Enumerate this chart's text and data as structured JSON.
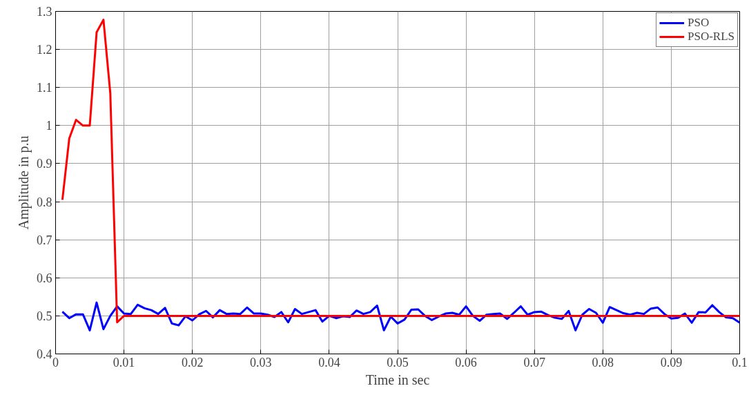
{
  "chart_data": {
    "type": "line",
    "xlabel": "Time in sec",
    "ylabel": "Amplitude in p.u",
    "xlim": [
      0,
      0.1
    ],
    "ylim": [
      0.4,
      1.3
    ],
    "xticks": [
      0,
      0.01,
      0.02,
      0.03,
      0.04,
      0.05,
      0.06,
      0.07,
      0.08,
      0.09,
      0.1
    ],
    "yticks": [
      0.4,
      0.5,
      0.6,
      0.7,
      0.8,
      0.9,
      1,
      1.1,
      1.2,
      1.3
    ],
    "grid": true,
    "legend": "top right",
    "line_style": "solid",
    "marker": "none",
    "series": [
      {
        "name": "PSO",
        "color": "#0000ff",
        "x": [
          0.001,
          0.002,
          0.003,
          0.004,
          0.005,
          0.006,
          0.007,
          0.008,
          0.009,
          0.01,
          0.011,
          0.012,
          0.013,
          0.014,
          0.015,
          0.016,
          0.017,
          0.018,
          0.019,
          0.02,
          0.021,
          0.022,
          0.023,
          0.024,
          0.025,
          0.026,
          0.027,
          0.028,
          0.029,
          0.03,
          0.031,
          0.032,
          0.033,
          0.034,
          0.035,
          0.036,
          0.037,
          0.038,
          0.039,
          0.04,
          0.041,
          0.042,
          0.043,
          0.044,
          0.045,
          0.046,
          0.047,
          0.048,
          0.049,
          0.05,
          0.051,
          0.052,
          0.053,
          0.054,
          0.055,
          0.056,
          0.057,
          0.058,
          0.059,
          0.06,
          0.061,
          0.062,
          0.063,
          0.064,
          0.065,
          0.066,
          0.067,
          0.068,
          0.069,
          0.07,
          0.071,
          0.072,
          0.073,
          0.074,
          0.075,
          0.076,
          0.077,
          0.078,
          0.079,
          0.08,
          0.081,
          0.082,
          0.083,
          0.084,
          0.085,
          0.086,
          0.087,
          0.088,
          0.089,
          0.09,
          0.091,
          0.092,
          0.093,
          0.094,
          0.095,
          0.096,
          0.097,
          0.098,
          0.099,
          0.1
        ],
        "values": [
          0.511,
          0.494,
          0.504,
          0.504,
          0.462,
          0.535,
          0.465,
          0.5,
          0.525,
          0.506,
          0.505,
          0.529,
          0.52,
          0.515,
          0.505,
          0.521,
          0.48,
          0.475,
          0.499,
          0.488,
          0.504,
          0.513,
          0.496,
          0.515,
          0.505,
          0.506,
          0.505,
          0.522,
          0.506,
          0.506,
          0.503,
          0.497,
          0.51,
          0.483,
          0.518,
          0.505,
          0.51,
          0.515,
          0.485,
          0.5,
          0.494,
          0.499,
          0.497,
          0.514,
          0.505,
          0.51,
          0.527,
          0.462,
          0.498,
          0.48,
          0.49,
          0.516,
          0.517,
          0.5,
          0.489,
          0.498,
          0.506,
          0.508,
          0.503,
          0.525,
          0.5,
          0.487,
          0.503,
          0.505,
          0.506,
          0.492,
          0.508,
          0.525,
          0.503,
          0.51,
          0.511,
          0.502,
          0.495,
          0.492,
          0.513,
          0.462,
          0.503,
          0.518,
          0.508,
          0.482,
          0.523,
          0.515,
          0.507,
          0.503,
          0.508,
          0.505,
          0.519,
          0.522,
          0.505,
          0.493,
          0.495,
          0.506,
          0.482,
          0.51,
          0.509,
          0.528,
          0.51,
          0.496,
          0.494,
          0.482
        ]
      },
      {
        "name": "PSO-RLS",
        "color": "#ff0000",
        "x": [
          0.001,
          0.002,
          0.003,
          0.004,
          0.005,
          0.006,
          0.007,
          0.008,
          0.009,
          0.01,
          0.1
        ],
        "values": [
          0.805,
          0.966,
          1.015,
          1.0,
          1.0,
          1.245,
          1.278,
          1.085,
          0.483,
          0.5,
          0.5
        ]
      }
    ]
  }
}
